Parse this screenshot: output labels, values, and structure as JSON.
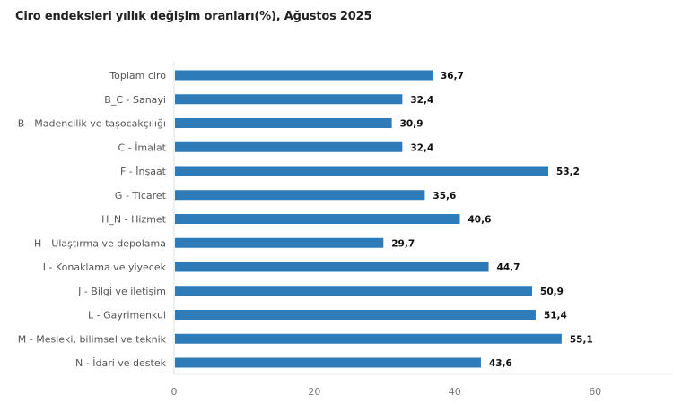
{
  "chart_data": {
    "type": "bar",
    "orientation": "horizontal",
    "title": "Ciro endeksleri yıllık değişim oranları(%), Ağustos 2025",
    "categories": [
      "Toplam ciro",
      "B_C - Sanayi",
      "B - Madencilik ve taşocakçılığı",
      "C - İmalat",
      "F - İnşaat",
      "G - Ticaret",
      "H_N - Hizmet",
      "H - Ulaştırma ve depolama",
      "I - Konaklama ve yiyecek",
      "J - Bilgi ve iletişim",
      "L - Gayrimenkul",
      "M - Mesleki, bilimsel ve teknik",
      "N - İdari ve destek"
    ],
    "values": [
      36.7,
      32.4,
      30.9,
      32.4,
      53.2,
      35.6,
      40.6,
      29.7,
      44.7,
      50.9,
      51.4,
      55.1,
      43.6
    ],
    "value_labels": [
      "36,7",
      "32,4",
      "30,9",
      "32,4",
      "53,2",
      "35,6",
      "40,6",
      "29,7",
      "44,7",
      "50,9",
      "51,4",
      "55,1",
      "43,6"
    ],
    "xticks": [
      "0",
      "20",
      "40",
      "60"
    ],
    "xlim": [
      0,
      71
    ],
    "grid": false,
    "colors": {
      "bar": "#2e7bb9"
    }
  }
}
